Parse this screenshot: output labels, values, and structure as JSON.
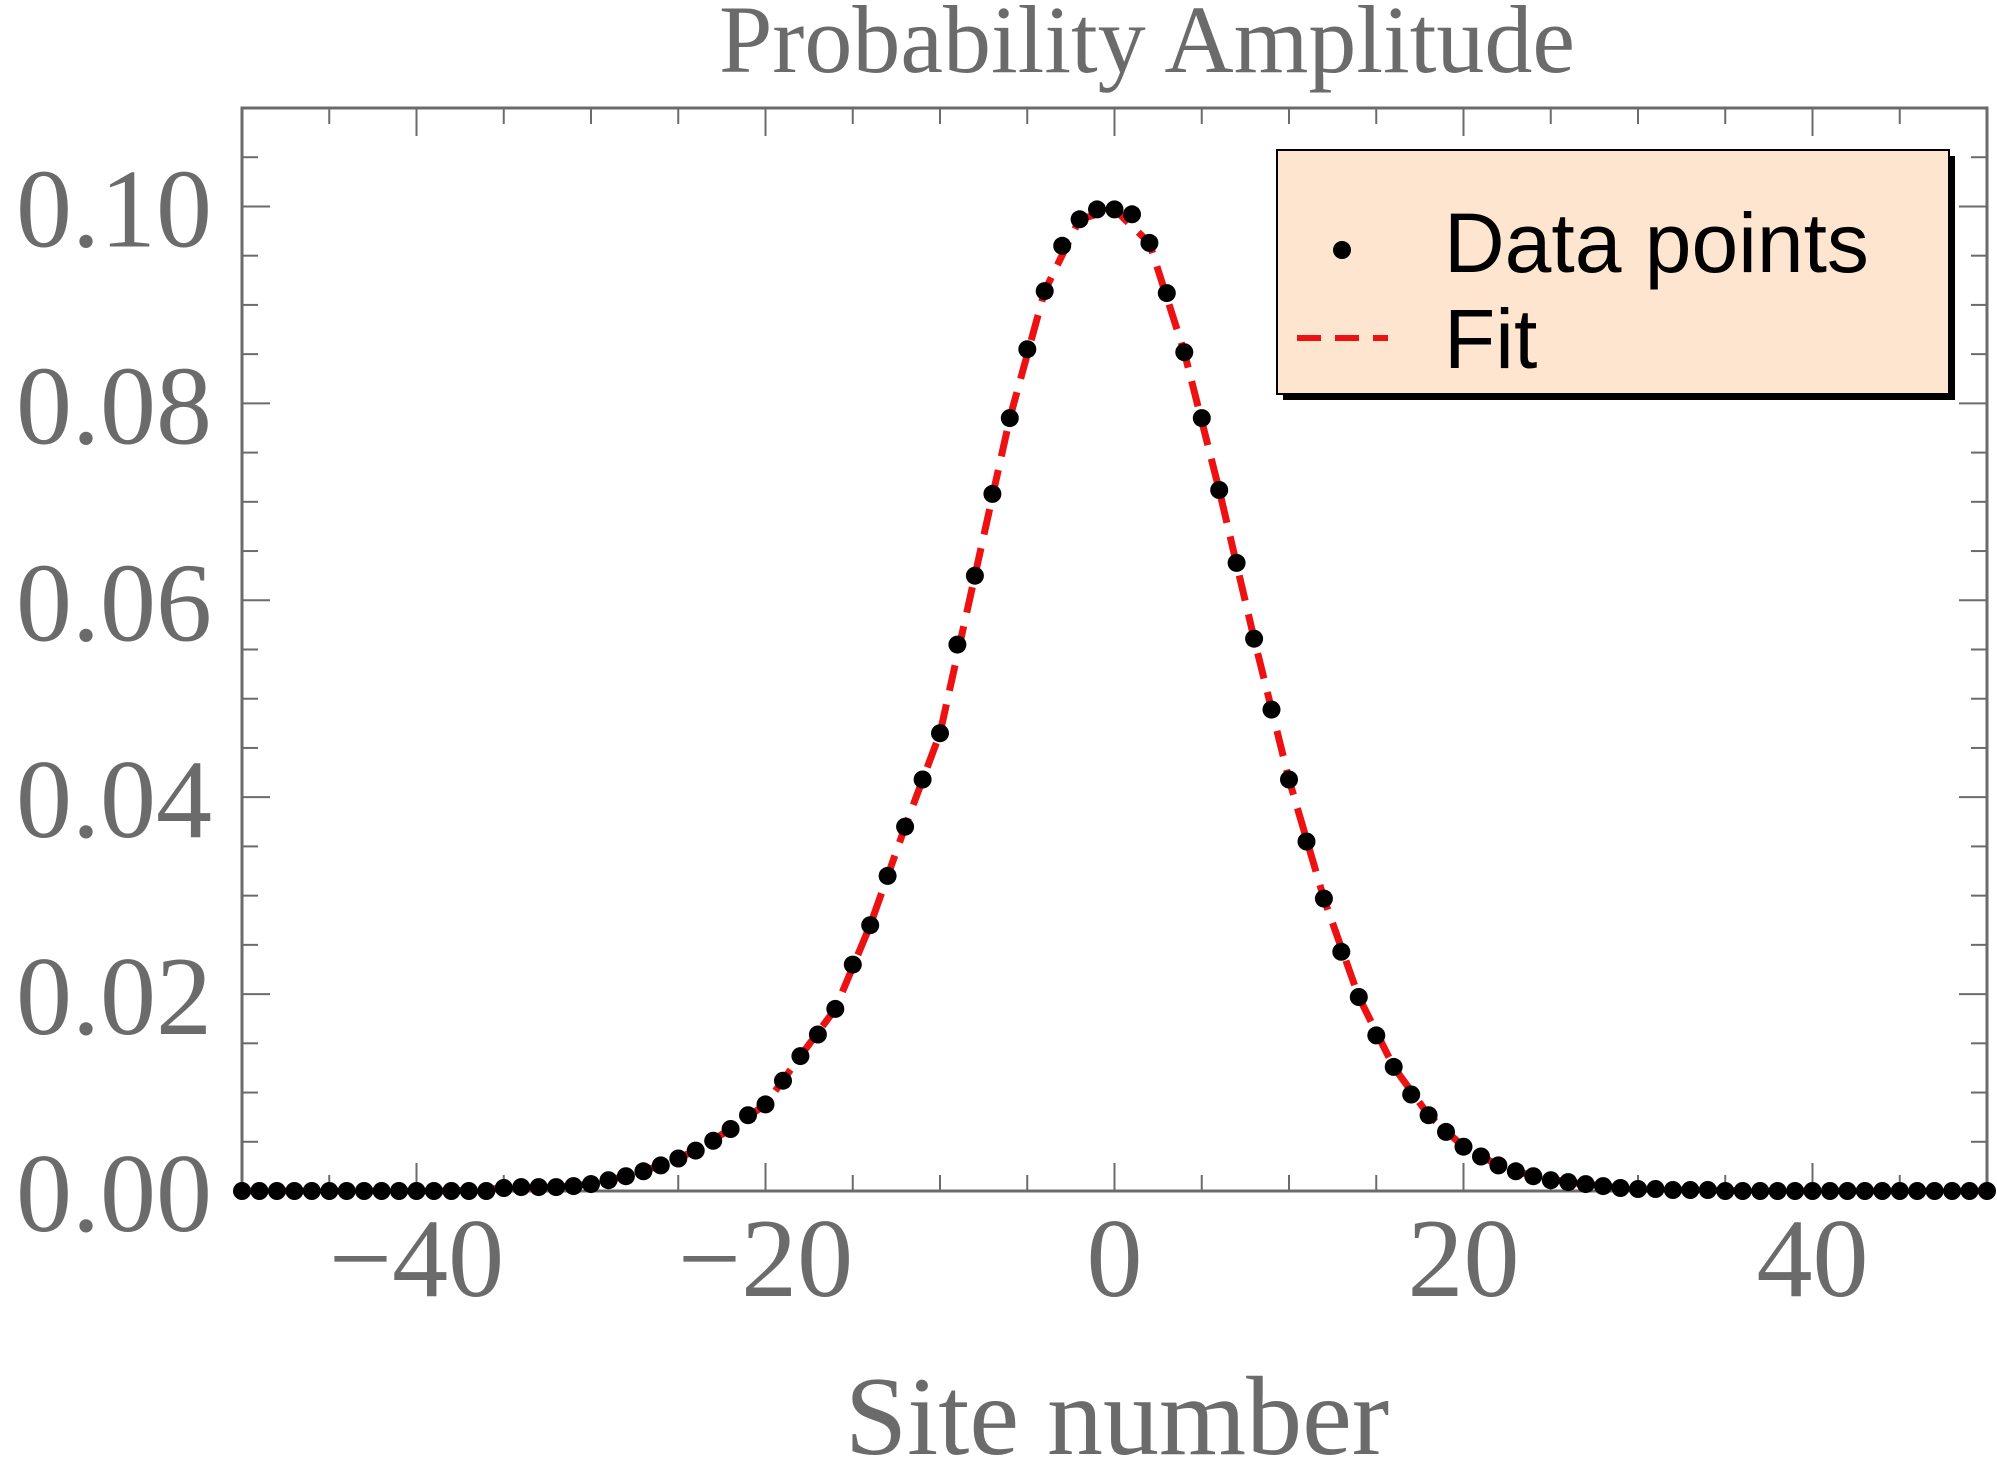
{
  "chart_data": {
    "type": "scatter",
    "title": "Probability Amplitude",
    "xlabel": "Site number",
    "ylabel": "",
    "xlim": [
      -50,
      50
    ],
    "ylim": [
      0,
      0.11
    ],
    "x_ticks": [
      -40,
      -20,
      0,
      20,
      40
    ],
    "x_tick_labels": [
      "−40",
      "−20",
      "0",
      "20",
      "40"
    ],
    "y_ticks": [
      0,
      0.02,
      0.04,
      0.06,
      0.08,
      0.1
    ],
    "y_tick_labels": [
      "0.00",
      "0.02",
      "0.04",
      "0.06",
      "0.08",
      "0.10"
    ],
    "grid": false,
    "legend_position": "top-right",
    "colors": {
      "points": "#000000",
      "fit": "#ee1111",
      "legend_background": "#fde5cf",
      "axis": "#6b6b6b",
      "text": "#6b6b6b"
    },
    "series": [
      {
        "name": "Data points",
        "kind": "scatter",
        "x": [
          -50,
          -49,
          -48,
          -47,
          -46,
          -45,
          -44,
          -43,
          -42,
          -41,
          -40,
          -39,
          -38,
          -37,
          -36,
          -35,
          -34,
          -33,
          -32,
          -31,
          -30,
          -29,
          -28,
          -27,
          -26,
          -25,
          -24,
          -23,
          -22,
          -21,
          -20,
          -19,
          -18,
          -17,
          -16,
          -15,
          -14,
          -13,
          -12,
          -11,
          -10,
          -9,
          -8,
          -7,
          -6,
          -5,
          -4,
          -3,
          -2,
          -1,
          0,
          1,
          2,
          3,
          4,
          5,
          6,
          7,
          8,
          9,
          10,
          11,
          12,
          13,
          14,
          15,
          16,
          17,
          18,
          19,
          20,
          21,
          22,
          23,
          24,
          25,
          26,
          27,
          28,
          29,
          30,
          31,
          32,
          33,
          34,
          35,
          36,
          37,
          38,
          39,
          40,
          41,
          42,
          43,
          44,
          45,
          46,
          47,
          48,
          49,
          50
        ],
        "y": [
          0.0,
          0.0,
          0.0,
          0.0,
          0.0,
          0.0,
          0.0,
          0.0,
          0.0,
          0.0,
          0.0,
          0.0,
          0.0,
          0.0,
          0.0,
          0.0003,
          0.0004,
          0.0004,
          0.0004,
          0.0005,
          0.0007,
          0.0011,
          0.0015,
          0.002,
          0.0026,
          0.0033,
          0.0041,
          0.0051,
          0.0063,
          0.0077,
          0.0088,
          0.0112,
          0.0137,
          0.0159,
          0.0185,
          0.023,
          0.027,
          0.032,
          0.037,
          0.0418,
          0.0465,
          0.0555,
          0.0625,
          0.0708,
          0.0785,
          0.0855,
          0.0914,
          0.096,
          0.0987,
          0.0997,
          0.0997,
          0.0992,
          0.0963,
          0.0912,
          0.0852,
          0.0785,
          0.0712,
          0.0638,
          0.0561,
          0.0489,
          0.0418,
          0.0355,
          0.0297,
          0.0243,
          0.0197,
          0.0158,
          0.0126,
          0.0098,
          0.0077,
          0.006,
          0.0045,
          0.0035,
          0.0026,
          0.002,
          0.0015,
          0.0011,
          0.0009,
          0.0007,
          0.0005,
          0.0003,
          0.0002,
          0.0002,
          0.0001,
          0.0001,
          0.0001,
          0.0,
          0.0,
          0.0,
          0.0,
          0.0,
          0.0,
          0.0,
          0.0,
          0.0,
          0.0,
          0.0,
          0.0,
          0.0,
          0.0,
          0.0,
          0.0
        ]
      },
      {
        "name": "Fit",
        "kind": "line",
        "style": "dashed",
        "x": [
          -50,
          -48,
          -46,
          -44,
          -42,
          -40,
          -38,
          -36,
          -34,
          -32,
          -30,
          -28,
          -26,
          -24,
          -22,
          -20,
          -18,
          -16,
          -14,
          -12,
          -10,
          -8,
          -6,
          -4,
          -2,
          0,
          2,
          4,
          6,
          8,
          10,
          12,
          14,
          16,
          18,
          20,
          22,
          24,
          26,
          28,
          30,
          32,
          34,
          36,
          38,
          40,
          42,
          44,
          46,
          48,
          50
        ],
        "y": [
          0.0,
          0.0,
          0.0,
          0.0,
          0.0,
          0.0,
          0.0,
          0.0002,
          0.0003,
          0.0004,
          0.0007,
          0.0015,
          0.0026,
          0.0041,
          0.0063,
          0.0088,
          0.0137,
          0.0185,
          0.027,
          0.037,
          0.0465,
          0.0625,
          0.0785,
          0.0914,
          0.0987,
          0.0997,
          0.0963,
          0.0852,
          0.0712,
          0.0561,
          0.0418,
          0.0297,
          0.0197,
          0.0126,
          0.0077,
          0.0045,
          0.0026,
          0.0015,
          0.0009,
          0.0005,
          0.0002,
          0.0001,
          0.0001,
          0.0,
          0.0,
          0.0,
          0.0,
          0.0,
          0.0,
          0.0,
          0.0
        ]
      }
    ]
  }
}
